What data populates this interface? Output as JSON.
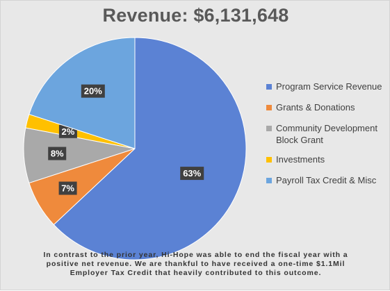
{
  "chart_data": {
    "type": "pie",
    "title": "Revenue: $6,131,648",
    "slices": [
      {
        "name": "Program Service Revenue",
        "value": 63,
        "label": "63%",
        "color": "#5b82d4"
      },
      {
        "name": "Grants & Donations",
        "value": 7,
        "label": "7%",
        "color": "#ef8a3c"
      },
      {
        "name": "Community Development Block Grant",
        "value": 8,
        "label": "8%",
        "color": "#a9a9a9"
      },
      {
        "name": "Investments",
        "value": 2,
        "label": "2%",
        "color": "#ffc000"
      },
      {
        "name": "Payroll Tax Credit & Misc",
        "value": 20,
        "label": "20%",
        "color": "#6ca5de"
      }
    ],
    "legend_position": "right",
    "legend": [
      {
        "line1": "Program Service Revenue",
        "line2": ""
      },
      {
        "line1": "Grants & Donations",
        "line2": ""
      },
      {
        "line1": "Community Development",
        "line2": "Block Grant"
      },
      {
        "line1": "Investments",
        "line2": ""
      },
      {
        "line1": "Payroll Tax Credit & Misc",
        "line2": ""
      }
    ]
  },
  "note": {
    "line1": "In contrast to the prior year, Hi-Hope was able to end the fiscal year with a",
    "line2": "positive net revenue.  We are thankful to have received a one-time $1.1Mil",
    "line3": "Employer Tax Credit that heavily contributed to this outcome."
  }
}
